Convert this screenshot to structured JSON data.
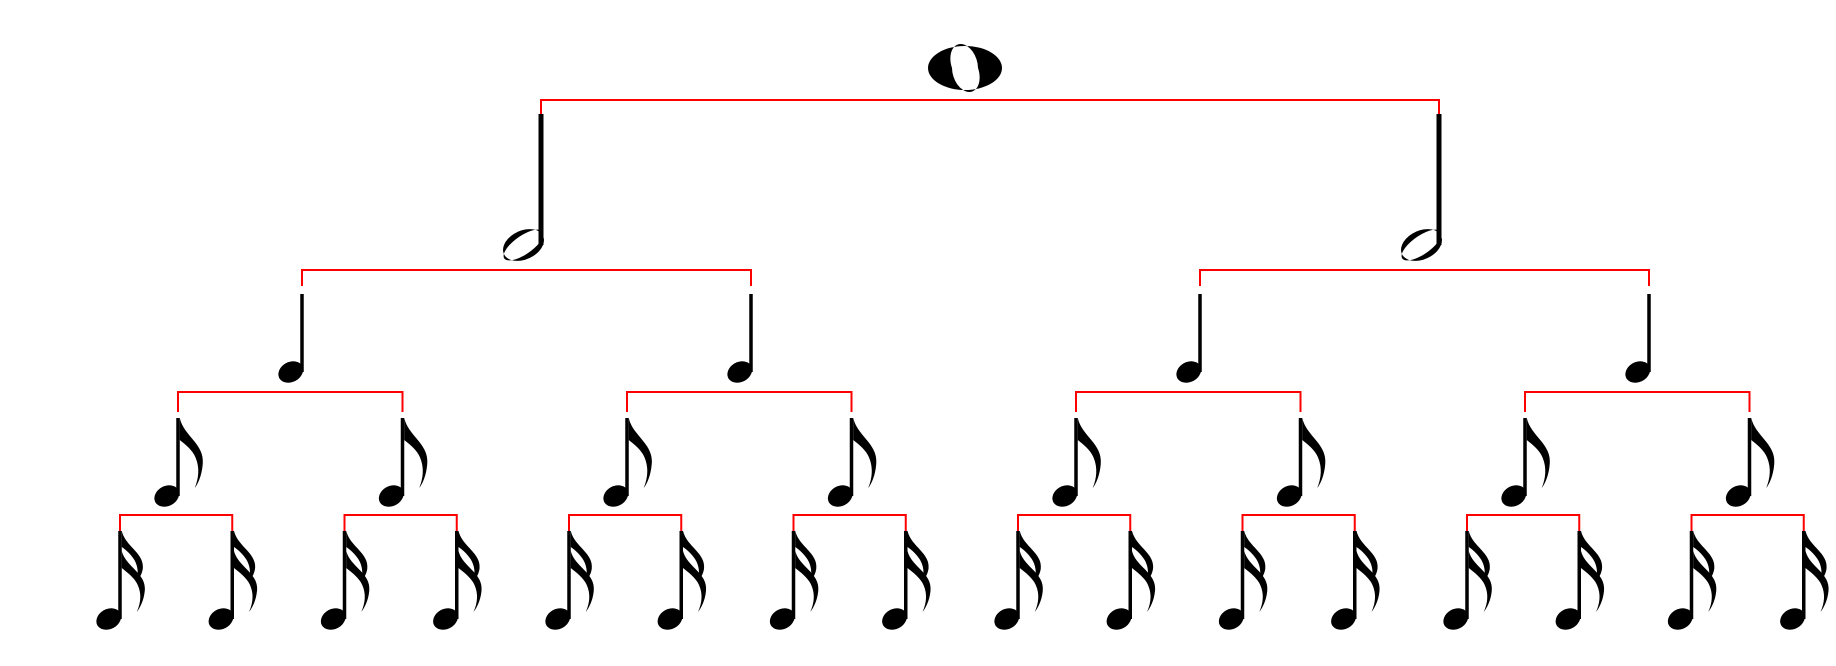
{
  "diagram": {
    "type": "note-value-tree",
    "colors": {
      "connector": "#ff0000",
      "note": "#000000",
      "background": "#ffffff"
    },
    "levels": [
      {
        "note": "whole-note",
        "count": 1
      },
      {
        "note": "half-note",
        "count": 2
      },
      {
        "note": "quarter-note",
        "count": 4
      },
      {
        "note": "eighth-note",
        "count": 8
      },
      {
        "note": "sixteenth-note",
        "count": 16
      }
    ]
  }
}
